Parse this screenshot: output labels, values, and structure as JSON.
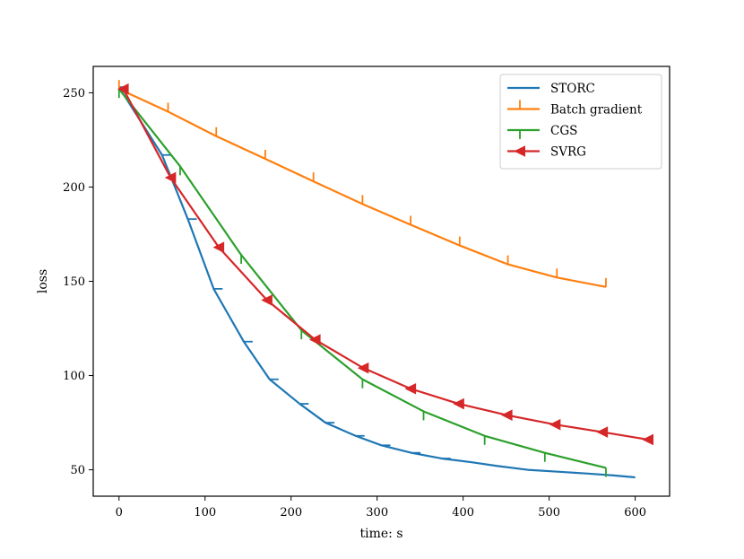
{
  "chart_data": {
    "type": "line",
    "title": "",
    "xlabel": "time: s",
    "ylabel": "loss",
    "xlim": [
      -30,
      640
    ],
    "ylim": [
      36,
      264
    ],
    "xticks": [
      0,
      100,
      200,
      300,
      400,
      500,
      600
    ],
    "yticks": [
      50,
      100,
      150,
      200,
      250
    ],
    "grid": false,
    "legend_position": "top-right",
    "series": [
      {
        "name": "STORC",
        "color": "#1f77b4",
        "marker": "tickright",
        "x": [
          0,
          50,
          80,
          110,
          145,
          175,
          210,
          240,
          275,
          305,
          340,
          375,
          410,
          440,
          475,
          510,
          545,
          575,
          600
        ],
        "y": [
          253,
          217,
          183,
          146,
          118,
          98,
          85,
          75,
          68,
          63,
          59,
          56,
          54,
          52,
          50,
          49,
          48,
          47,
          46
        ],
        "markers_x": [
          0,
          50,
          80,
          110,
          145,
          175,
          210,
          240,
          275,
          305,
          340,
          375
        ],
        "markers_y": [
          253,
          217,
          183,
          146,
          118,
          98,
          85,
          75,
          68,
          63,
          59,
          56
        ]
      },
      {
        "name": "Batch gradient",
        "color": "#ff7f0e",
        "marker": "tickup",
        "x": [
          0,
          57,
          113,
          170,
          226,
          283,
          339,
          396,
          452,
          509,
          566
        ],
        "y": [
          252,
          240,
          227,
          215,
          203,
          191,
          180,
          169,
          159,
          152,
          147
        ],
        "markers_x": [
          0,
          57,
          113,
          170,
          226,
          283,
          339,
          396,
          452,
          509,
          566
        ],
        "markers_y": [
          252,
          240,
          227,
          215,
          203,
          191,
          180,
          169,
          159,
          152,
          147
        ]
      },
      {
        "name": "CGS",
        "color": "#2ca02c",
        "marker": "tickdown",
        "x": [
          0,
          71,
          142,
          212,
          283,
          354,
          425,
          495,
          566
        ],
        "y": [
          252,
          211,
          164,
          124,
          98,
          81,
          68,
          59,
          51
        ],
        "markers_x": [
          0,
          71,
          142,
          212,
          283,
          354,
          425,
          495,
          566
        ],
        "markers_y": [
          252,
          211,
          164,
          124,
          98,
          81,
          68,
          59,
          51
        ]
      },
      {
        "name": "SVRG",
        "color": "#d62728",
        "marker": "triangle-left",
        "x": [
          5,
          60,
          116,
          172,
          228,
          284,
          339,
          395,
          451,
          507,
          562,
          615
        ],
        "y": [
          252,
          205,
          168,
          140,
          119,
          104,
          93,
          85,
          79,
          74,
          70,
          66
        ],
        "markers_x": [
          5,
          60,
          116,
          172,
          228,
          284,
          339,
          395,
          451,
          507,
          562,
          615
        ],
        "markers_y": [
          252,
          205,
          168,
          140,
          119,
          104,
          93,
          85,
          79,
          74,
          70,
          66
        ]
      }
    ]
  }
}
